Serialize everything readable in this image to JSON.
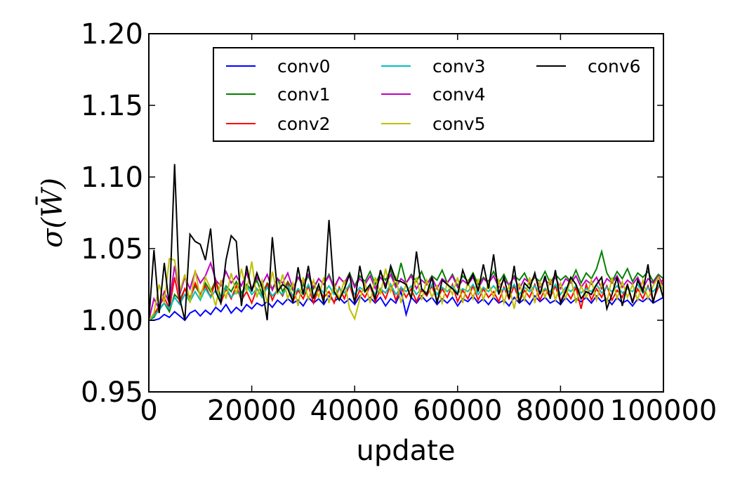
{
  "chart_data": {
    "type": "line",
    "xlabel": "update",
    "ylabel": "σ(W̄)",
    "xlim": [
      0,
      100000
    ],
    "ylim": [
      0.95,
      1.2
    ],
    "grid": false,
    "legend_position": "top-right",
    "legend_columns": 3,
    "x_ticks": [
      "0",
      "20000",
      "40000",
      "60000",
      "80000",
      "100000"
    ],
    "y_ticks": [
      "0.95",
      "1.00",
      "1.05",
      "1.10",
      "1.15",
      "1.20"
    ],
    "x_tick_values": [
      0,
      20000,
      40000,
      60000,
      80000,
      100000
    ],
    "y_tick_values": [
      0.95,
      1.0,
      1.05,
      1.1,
      1.15,
      1.2
    ],
    "x": [
      0,
      1000,
      2000,
      3000,
      4000,
      5000,
      6000,
      7000,
      8000,
      9000,
      10000,
      11000,
      12000,
      13000,
      14000,
      15000,
      16000,
      17000,
      18000,
      19000,
      20000,
      21000,
      22000,
      23000,
      24000,
      25000,
      26000,
      27000,
      28000,
      29000,
      30000,
      31000,
      32000,
      33000,
      34000,
      35000,
      36000,
      37000,
      38000,
      39000,
      40000,
      41000,
      42000,
      43000,
      44000,
      45000,
      46000,
      47000,
      48000,
      49000,
      50000,
      51000,
      52000,
      53000,
      54000,
      55000,
      56000,
      57000,
      58000,
      59000,
      60000,
      61000,
      62000,
      63000,
      64000,
      65000,
      66000,
      67000,
      68000,
      69000,
      70000,
      71000,
      72000,
      73000,
      74000,
      75000,
      76000,
      77000,
      78000,
      79000,
      80000,
      81000,
      82000,
      83000,
      84000,
      85000,
      86000,
      87000,
      88000,
      89000,
      90000,
      91000,
      92000,
      93000,
      94000,
      95000,
      96000,
      97000,
      98000,
      99000,
      100000
    ],
    "series": [
      {
        "name": "conv0",
        "color": "#0000ff",
        "values": [
          1.0,
          1.0,
          1.001,
          1.004,
          1.002,
          1.006,
          1.003,
          1.0,
          1.005,
          1.007,
          1.003,
          1.007,
          1.004,
          1.009,
          1.006,
          1.011,
          1.005,
          1.009,
          1.006,
          1.011,
          1.008,
          1.012,
          1.01,
          1.013,
          1.009,
          1.014,
          1.011,
          1.015,
          1.012,
          1.014,
          1.01,
          1.016,
          1.012,
          1.015,
          1.011,
          1.017,
          1.013,
          1.016,
          1.012,
          1.015,
          1.011,
          1.017,
          1.013,
          1.016,
          1.012,
          1.016,
          1.01,
          1.015,
          1.012,
          1.02,
          1.004,
          1.016,
          1.012,
          1.017,
          1.013,
          1.016,
          1.011,
          1.015,
          1.012,
          1.016,
          1.01,
          1.015,
          1.013,
          1.017,
          1.012,
          1.015,
          1.011,
          1.016,
          1.012,
          1.014,
          1.01,
          1.016,
          1.012,
          1.015,
          1.011,
          1.017,
          1.013,
          1.016,
          1.012,
          1.014,
          1.011,
          1.016,
          1.012,
          1.015,
          1.013,
          1.016,
          1.012,
          1.017,
          1.013,
          1.015,
          1.011,
          1.016,
          1.012,
          1.014,
          1.01,
          1.015,
          1.013,
          1.016,
          1.012,
          1.014,
          1.016
        ]
      },
      {
        "name": "conv1",
        "color": "#008000",
        "values": [
          1.0,
          1.002,
          1.008,
          1.012,
          1.006,
          1.018,
          1.014,
          1.022,
          1.016,
          1.024,
          1.018,
          1.026,
          1.02,
          1.028,
          1.016,
          1.024,
          1.02,
          1.027,
          1.019,
          1.025,
          1.021,
          1.028,
          1.018,
          1.026,
          1.022,
          1.029,
          1.02,
          1.027,
          1.021,
          1.03,
          1.024,
          1.031,
          1.022,
          1.029,
          1.025,
          1.032,
          1.023,
          1.03,
          1.026,
          1.033,
          1.024,
          1.031,
          1.027,
          1.034,
          1.025,
          1.033,
          1.028,
          1.035,
          1.024,
          1.04,
          1.026,
          1.032,
          1.027,
          1.034,
          1.025,
          1.031,
          1.028,
          1.035,
          1.026,
          1.032,
          1.024,
          1.031,
          1.027,
          1.033,
          1.025,
          1.03,
          1.027,
          1.034,
          1.026,
          1.032,
          1.024,
          1.031,
          1.028,
          1.033,
          1.025,
          1.03,
          1.027,
          1.034,
          1.026,
          1.032,
          1.028,
          1.031,
          1.027,
          1.035,
          1.026,
          1.033,
          1.029,
          1.036,
          1.048,
          1.033,
          1.027,
          1.034,
          1.029,
          1.036,
          1.027,
          1.033,
          1.03,
          1.034,
          1.027,
          1.032,
          1.029
        ]
      },
      {
        "name": "conv2",
        "color": "#ff0000",
        "values": [
          1.0,
          1.004,
          1.01,
          1.016,
          1.008,
          1.03,
          1.012,
          1.022,
          1.014,
          1.026,
          1.018,
          1.024,
          1.016,
          1.028,
          1.012,
          1.022,
          1.015,
          1.024,
          1.014,
          1.02,
          1.012,
          1.022,
          1.016,
          1.025,
          1.014,
          1.022,
          1.017,
          1.026,
          1.013,
          1.021,
          1.015,
          1.024,
          1.012,
          1.022,
          1.016,
          1.02,
          1.012,
          1.023,
          1.015,
          1.025,
          1.013,
          1.021,
          1.016,
          1.024,
          1.013,
          1.022,
          1.015,
          1.025,
          1.014,
          1.023,
          1.016,
          1.022,
          1.013,
          1.021,
          1.017,
          1.024,
          1.014,
          1.022,
          1.016,
          1.025,
          1.013,
          1.021,
          1.015,
          1.024,
          1.014,
          1.022,
          1.016,
          1.02,
          1.013,
          1.023,
          1.015,
          1.024,
          1.013,
          1.021,
          1.016,
          1.025,
          1.014,
          1.022,
          1.016,
          1.024,
          1.013,
          1.021,
          1.015,
          1.023,
          1.008,
          1.025,
          1.014,
          1.022,
          1.016,
          1.024,
          1.014,
          1.021,
          1.016,
          1.025,
          1.013,
          1.022,
          1.015,
          1.024,
          1.014,
          1.023,
          1.029
        ]
      },
      {
        "name": "conv3",
        "color": "#00bfbf",
        "values": [
          1.0,
          1.003,
          1.007,
          1.012,
          1.008,
          1.016,
          1.011,
          1.018,
          1.013,
          1.02,
          1.014,
          1.022,
          1.016,
          1.021,
          1.015,
          1.023,
          1.016,
          1.02,
          1.017,
          1.024,
          1.018,
          1.022,
          1.016,
          1.023,
          1.017,
          1.021,
          1.018,
          1.024,
          1.017,
          1.022,
          1.018,
          1.025,
          1.017,
          1.023,
          1.019,
          1.024,
          1.018,
          1.022,
          1.019,
          1.025,
          1.018,
          1.023,
          1.02,
          1.024,
          1.018,
          1.022,
          1.019,
          1.025,
          1.018,
          1.023,
          1.02,
          1.024,
          1.018,
          1.022,
          1.019,
          1.025,
          1.018,
          1.023,
          1.02,
          1.024,
          1.019,
          1.022,
          1.02,
          1.025,
          1.018,
          1.023,
          1.02,
          1.024,
          1.019,
          1.022,
          1.02,
          1.025,
          1.018,
          1.023,
          1.02,
          1.024,
          1.019,
          1.022,
          1.02,
          1.025,
          1.018,
          1.023,
          1.02,
          1.024,
          1.019,
          1.022,
          1.02,
          1.025,
          1.019,
          1.023,
          1.02,
          1.024,
          1.019,
          1.022,
          1.02,
          1.025,
          1.019,
          1.023,
          1.02,
          1.024,
          1.022
        ]
      },
      {
        "name": "conv4",
        "color": "#bf00bf",
        "values": [
          1.0,
          1.015,
          1.008,
          1.02,
          1.012,
          1.038,
          1.018,
          1.03,
          1.022,
          1.034,
          1.026,
          1.031,
          1.04,
          1.028,
          1.024,
          1.034,
          1.026,
          1.031,
          1.024,
          1.033,
          1.022,
          1.03,
          1.025,
          1.032,
          1.021,
          1.029,
          1.026,
          1.033,
          1.022,
          1.03,
          1.026,
          1.032,
          1.023,
          1.029,
          1.025,
          1.031,
          1.022,
          1.03,
          1.026,
          1.032,
          1.023,
          1.029,
          1.025,
          1.031,
          1.022,
          1.03,
          1.025,
          1.032,
          1.023,
          1.029,
          1.026,
          1.031,
          1.022,
          1.028,
          1.025,
          1.03,
          1.022,
          1.029,
          1.026,
          1.031,
          1.023,
          1.028,
          1.025,
          1.03,
          1.022,
          1.029,
          1.026,
          1.031,
          1.023,
          1.028,
          1.025,
          1.03,
          1.022,
          1.029,
          1.026,
          1.031,
          1.023,
          1.028,
          1.025,
          1.03,
          1.022,
          1.029,
          1.026,
          1.031,
          1.023,
          1.028,
          1.025,
          1.03,
          1.022,
          1.029,
          1.026,
          1.031,
          1.023,
          1.028,
          1.025,
          1.03,
          1.022,
          1.029,
          1.026,
          1.031,
          1.024
        ]
      },
      {
        "name": "conv5",
        "color": "#bfbf00",
        "values": [
          1.0,
          1.005,
          1.025,
          1.012,
          1.043,
          1.042,
          1.02,
          1.032,
          1.012,
          1.035,
          1.015,
          1.03,
          1.022,
          1.01,
          1.028,
          1.015,
          1.033,
          1.018,
          1.036,
          1.02,
          1.041,
          1.016,
          1.028,
          1.012,
          1.034,
          1.018,
          1.032,
          1.015,
          1.026,
          1.01,
          1.03,
          1.014,
          1.028,
          1.016,
          1.03,
          1.012,
          1.025,
          1.015,
          1.028,
          1.008,
          1.001,
          1.015,
          1.026,
          1.012,
          1.03,
          1.018,
          1.036,
          1.02,
          1.03,
          1.012,
          1.026,
          1.016,
          1.03,
          1.014,
          1.028,
          1.016,
          1.024,
          1.012,
          1.026,
          1.018,
          1.03,
          1.012,
          1.027,
          1.015,
          1.029,
          1.014,
          1.026,
          1.016,
          1.028,
          1.012,
          1.024,
          1.008,
          1.026,
          1.014,
          1.03,
          1.012,
          1.027,
          1.016,
          1.029,
          1.014,
          1.026,
          1.015,
          1.03,
          1.012,
          1.024,
          1.016,
          1.028,
          1.014,
          1.026,
          1.012,
          1.03,
          1.015,
          1.027,
          1.016,
          1.025,
          1.014,
          1.028,
          1.015,
          1.024,
          1.03,
          1.02
        ]
      },
      {
        "name": "conv6",
        "color": "#000000",
        "values": [
          1.0,
          1.049,
          1.005,
          1.04,
          1.01,
          1.109,
          1.015,
          1.0,
          1.06,
          1.055,
          1.053,
          1.042,
          1.064,
          1.02,
          1.012,
          1.042,
          1.059,
          1.055,
          1.01,
          1.038,
          1.02,
          1.033,
          1.023,
          1.0,
          1.058,
          1.02,
          1.025,
          1.022,
          1.013,
          1.037,
          1.018,
          1.038,
          1.015,
          1.025,
          1.012,
          1.07,
          1.02,
          1.014,
          1.022,
          1.032,
          1.012,
          1.038,
          1.02,
          1.025,
          1.015,
          1.035,
          1.022,
          1.038,
          1.028,
          1.027,
          1.025,
          1.015,
          1.048,
          1.022,
          1.018,
          1.03,
          1.012,
          1.028,
          1.025,
          1.022,
          1.018,
          1.035,
          1.025,
          1.032,
          1.02,
          1.039,
          1.022,
          1.046,
          1.018,
          1.03,
          1.015,
          1.038,
          1.012,
          1.026,
          1.022,
          1.033,
          1.018,
          1.031,
          1.015,
          1.035,
          1.012,
          1.02,
          1.03,
          1.025,
          1.015,
          1.02,
          1.018,
          1.025,
          1.03,
          1.008,
          1.018,
          1.03,
          1.01,
          1.025,
          1.012,
          1.028,
          1.02,
          1.039,
          1.012,
          1.028,
          1.015
        ]
      }
    ]
  }
}
